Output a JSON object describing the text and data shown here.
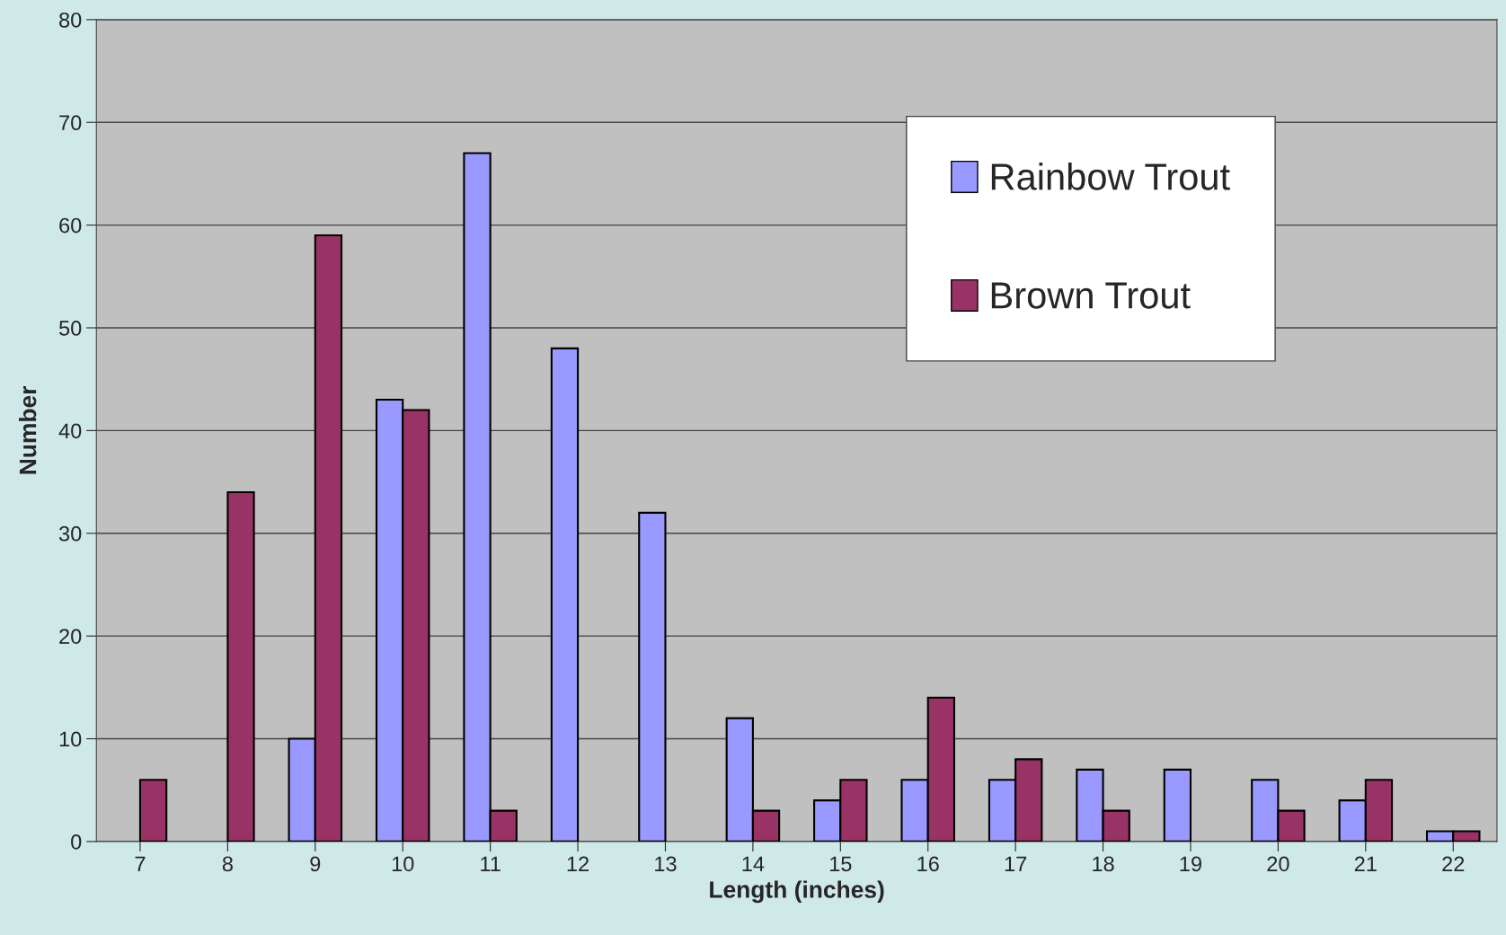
{
  "chart_data": {
    "type": "bar",
    "xlabel": "Length (inches)",
    "ylabel": "Number",
    "categories": [
      "7",
      "8",
      "9",
      "10",
      "11",
      "12",
      "13",
      "14",
      "15",
      "16",
      "17",
      "18",
      "19",
      "20",
      "21",
      "22"
    ],
    "series": [
      {
        "name": "Rainbow Trout",
        "color": "#9999ff",
        "values": [
          null,
          null,
          10,
          43,
          67,
          48,
          32,
          12,
          4,
          6,
          6,
          7,
          7,
          6,
          4,
          1
        ]
      },
      {
        "name": "Brown Trout",
        "color": "#993366",
        "values": [
          6,
          34,
          59,
          42,
          3,
          null,
          null,
          3,
          6,
          14,
          8,
          3,
          null,
          3,
          6,
          1
        ]
      }
    ],
    "ylim": [
      0,
      80
    ],
    "yticks": [
      0,
      10,
      20,
      30,
      40,
      50,
      60,
      70,
      80
    ],
    "grid": "y",
    "legend": "top right"
  }
}
